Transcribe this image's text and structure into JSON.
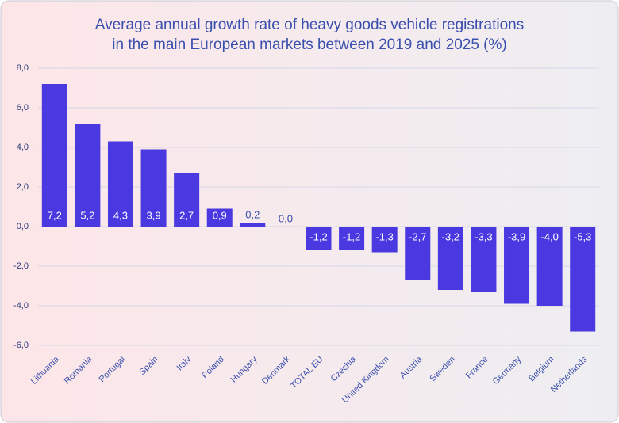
{
  "chart_data": {
    "type": "bar",
    "title": [
      "Average annual growth rate of heavy goods vehicle registrations",
      "in the main European markets between 2019 and 2025 (%)"
    ],
    "categories": [
      "Lithuania",
      "Romania",
      "Portugal",
      "Spain",
      "Italy",
      "Poland",
      "Hungary",
      "Denmark",
      "TOTAL EU",
      "Czechia",
      "United Kingdom",
      "Austria",
      "Sweden",
      "France",
      "Germany",
      "Belgium",
      "Netherlands"
    ],
    "values": [
      7.2,
      5.2,
      4.3,
      3.9,
      2.7,
      0.9,
      0.2,
      0.0,
      -1.2,
      -1.2,
      -1.3,
      -2.7,
      -3.2,
      -3.3,
      -3.9,
      -4.0,
      -5.3
    ],
    "value_labels": [
      "7,2",
      "5,2",
      "4,3",
      "3,9",
      "2,7",
      "0,9",
      "0,2",
      "0,0",
      "-1,2",
      "-1,2",
      "-1,3",
      "-2,7",
      "-3,2",
      "-3,3",
      "-3,9",
      "-4,0",
      "-5,3"
    ],
    "color": "#4a38e0",
    "ylim": [
      -6,
      8
    ],
    "yticks": [
      {
        "value": -6,
        "label": "-6,0"
      },
      {
        "value": -4,
        "label": "-4,0"
      },
      {
        "value": -2,
        "label": "-2,0"
      },
      {
        "value": 0,
        "label": "0,0"
      },
      {
        "value": 2,
        "label": "2,0"
      },
      {
        "value": 4,
        "label": "4,0"
      },
      {
        "value": 6,
        "label": "6,0"
      },
      {
        "value": 8,
        "label": "8,0"
      }
    ],
    "grid": true
  }
}
